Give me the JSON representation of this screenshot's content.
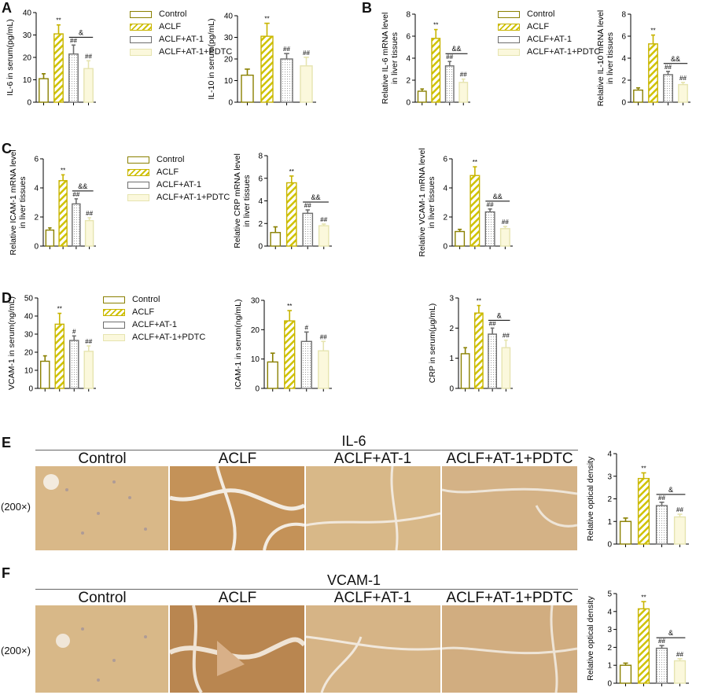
{
  "legend": [
    "Control",
    "ACLF",
    "ACLF+AT-1",
    "ACLF+AT-1+PDTC"
  ],
  "colors": {
    "control": "#8a8000",
    "aclf": "#c8b400",
    "at1": "#6e6e6e",
    "pdtc": "#e6e4b0"
  },
  "panels": {
    "A": {
      "label": "A"
    },
    "B": {
      "label": "B"
    },
    "C": {
      "label": "C"
    },
    "D": {
      "label": "D"
    },
    "E": {
      "label": "E"
    },
    "F": {
      "label": "F"
    }
  },
  "staining": {
    "E": {
      "title": "IL-6",
      "cols": [
        "Control",
        "ACLF",
        "ACLF+AT-1",
        "ACLF+AT-1+PDTC"
      ],
      "mag": "(200×)"
    },
    "F": {
      "title": "VCAM-1",
      "cols": [
        "Control",
        "ACLF",
        "ACLF+AT-1",
        "ACLF+AT-1+PDTC"
      ],
      "mag": "(200×)"
    }
  },
  "chart_data": [
    {
      "id": "A1",
      "type": "bar",
      "categories": [
        "Control",
        "ACLF",
        "ACLF+AT-1",
        "ACLF+AT-1+PDTC"
      ],
      "values": [
        10.5,
        30.5,
        21.5,
        15
      ],
      "errors": [
        2.2,
        4,
        4,
        3.5
      ],
      "ylabel": "IL-6 in serum(pg/mL)",
      "ylim": [
        0,
        40
      ],
      "yticks": [
        0,
        10,
        20,
        30,
        40
      ],
      "marks": [
        "",
        "**",
        "##",
        "##"
      ],
      "bracket": {
        "from": 2,
        "to": 3,
        "text": "&"
      }
    },
    {
      "id": "A2",
      "type": "bar",
      "categories": [
        "Control",
        "ACLF",
        "ACLF+AT-1",
        "ACLF+AT-1+PDTC"
      ],
      "values": [
        12.5,
        30.5,
        20,
        16.8
      ],
      "errors": [
        2.8,
        6,
        2.5,
        4
      ],
      "ylabel": "IL-10 in serum(pg/mL)",
      "ylim": [
        0,
        40
      ],
      "yticks": [
        0,
        10,
        20,
        30,
        40
      ],
      "marks": [
        "",
        "**",
        "##",
        "##"
      ]
    },
    {
      "id": "B1",
      "type": "bar",
      "categories": [
        "Control",
        "ACLF",
        "ACLF+AT-1",
        "ACLF+AT-1+PDTC"
      ],
      "values": [
        1,
        5.8,
        3.3,
        1.8
      ],
      "errors": [
        0.2,
        0.8,
        0.4,
        0.3
      ],
      "ylabel": "Relative IL-6 mRNA level in liver tissues",
      "ylim": [
        0,
        8
      ],
      "yticks": [
        0,
        2,
        4,
        6,
        8
      ],
      "marks": [
        "",
        "**",
        "##",
        "##"
      ],
      "bracket": {
        "from": 2,
        "to": 3,
        "text": "&&"
      }
    },
    {
      "id": "B2",
      "type": "bar",
      "categories": [
        "Control",
        "ACLF",
        "ACLF+AT-1",
        "ACLF+AT-1+PDTC"
      ],
      "values": [
        1.1,
        5.3,
        2.5,
        1.6
      ],
      "errors": [
        0.2,
        0.8,
        0.3,
        0.2
      ],
      "ylabel": "Relative IL-10 mRNA level in liver tissues",
      "ylim": [
        0,
        8
      ],
      "yticks": [
        0,
        2,
        4,
        6,
        8
      ],
      "marks": [
        "",
        "**",
        "##",
        "##"
      ],
      "bracket": {
        "from": 2,
        "to": 3,
        "text": "&&"
      }
    },
    {
      "id": "C1",
      "type": "bar",
      "categories": [
        "Control",
        "ACLF",
        "ACLF+AT-1",
        "ACLF+AT-1+PDTC"
      ],
      "values": [
        1.1,
        4.5,
        2.9,
        1.75
      ],
      "errors": [
        0.15,
        0.4,
        0.35,
        0.2
      ],
      "ylabel": "Relative ICAM-1 mRNA level in liver tissues",
      "ylim": [
        0,
        6
      ],
      "yticks": [
        0,
        2,
        4,
        6
      ],
      "marks": [
        "",
        "**",
        "##",
        "##"
      ],
      "bracket": {
        "from": 2,
        "to": 3,
        "text": "&&"
      }
    },
    {
      "id": "C2",
      "type": "bar",
      "categories": [
        "Control",
        "ACLF",
        "ACLF+AT-1",
        "ACLF+AT-1+PDTC"
      ],
      "values": [
        1.2,
        5.6,
        2.9,
        1.8
      ],
      "errors": [
        0.5,
        0.6,
        0.3,
        0.15
      ],
      "ylabel": "Relative CRP mRNA level in liver tissues",
      "ylim": [
        0,
        8
      ],
      "yticks": [
        0,
        2,
        4,
        6,
        8
      ],
      "marks": [
        "",
        "**",
        "##",
        "##"
      ],
      "bracket": {
        "from": 2,
        "to": 3,
        "text": "&&"
      }
    },
    {
      "id": "C3",
      "type": "bar",
      "categories": [
        "Control",
        "ACLF",
        "ACLF+AT-1",
        "ACLF+AT-1+PDTC"
      ],
      "values": [
        1,
        4.85,
        2.35,
        1.2
      ],
      "errors": [
        0.15,
        0.6,
        0.2,
        0.15
      ],
      "ylabel": "Relative VCAM-1 mRNA level in liver tissues",
      "ylim": [
        0,
        6
      ],
      "yticks": [
        0,
        2,
        4,
        6
      ],
      "marks": [
        "",
        "**",
        "##",
        "##"
      ],
      "bracket": {
        "from": 2,
        "to": 3,
        "text": "&&"
      }
    },
    {
      "id": "D1",
      "type": "bar",
      "categories": [
        "Control",
        "ACLF",
        "ACLF+AT-1",
        "ACLF+AT-1+PDTC"
      ],
      "values": [
        15,
        35.5,
        26.5,
        20.5
      ],
      "errors": [
        3,
        6,
        2.5,
        3
      ],
      "ylabel": "VCAM-1 in serum(ng/mL)",
      "ylim": [
        0,
        50
      ],
      "yticks": [
        0,
        10,
        20,
        30,
        40,
        50
      ],
      "marks": [
        "",
        "**",
        "#",
        "##"
      ]
    },
    {
      "id": "D2",
      "type": "bar",
      "categories": [
        "Control",
        "ACLF",
        "ACLF+AT-1",
        "ACLF+AT-1+PDTC"
      ],
      "values": [
        9,
        23,
        16,
        12.8
      ],
      "errors": [
        3,
        3.5,
        3.2,
        3.2
      ],
      "ylabel": "ICAM-1 in serum(ng/mL)",
      "ylim": [
        0,
        30
      ],
      "yticks": [
        0,
        10,
        20,
        30
      ],
      "marks": [
        "",
        "**",
        "#",
        "##"
      ]
    },
    {
      "id": "D3",
      "type": "bar",
      "categories": [
        "Control",
        "ACLF",
        "ACLF+AT-1",
        "ACLF+AT-1+PDTC"
      ],
      "values": [
        1.15,
        2.5,
        1.8,
        1.35
      ],
      "errors": [
        0.2,
        0.25,
        0.2,
        0.25
      ],
      "ylabel": "CRP in serum(μg/mL)",
      "ylim": [
        0,
        3
      ],
      "yticks": [
        0,
        1,
        2,
        3
      ],
      "marks": [
        "",
        "**",
        "##",
        "##"
      ],
      "bracket": {
        "from": 2,
        "to": 3,
        "text": "&"
      }
    },
    {
      "id": "E1",
      "type": "bar",
      "categories": [
        "Control",
        "ACLF",
        "ACLF+AT-1",
        "ACLF+AT-1+PDTC"
      ],
      "values": [
        1,
        2.9,
        1.7,
        1.2
      ],
      "errors": [
        0.15,
        0.25,
        0.15,
        0.12
      ],
      "ylabel": "Relative optical density",
      "ylim": [
        0,
        4
      ],
      "yticks": [
        0,
        1,
        2,
        3,
        4
      ],
      "marks": [
        "",
        "**",
        "##",
        "##"
      ],
      "bracket": {
        "from": 2,
        "to": 3,
        "text": "&"
      }
    },
    {
      "id": "F1",
      "type": "bar",
      "categories": [
        "Control",
        "ACLF",
        "ACLF+AT-1",
        "ACLF+AT-1+PDTC"
      ],
      "values": [
        1,
        4.15,
        1.95,
        1.25
      ],
      "errors": [
        0.12,
        0.4,
        0.15,
        0.12
      ],
      "ylabel": "Relative optical density",
      "ylim": [
        0,
        5
      ],
      "yticks": [
        0,
        1,
        2,
        3,
        4,
        5
      ],
      "marks": [
        "",
        "**",
        "##",
        "##"
      ],
      "bracket": {
        "from": 2,
        "to": 3,
        "text": "&"
      }
    }
  ]
}
